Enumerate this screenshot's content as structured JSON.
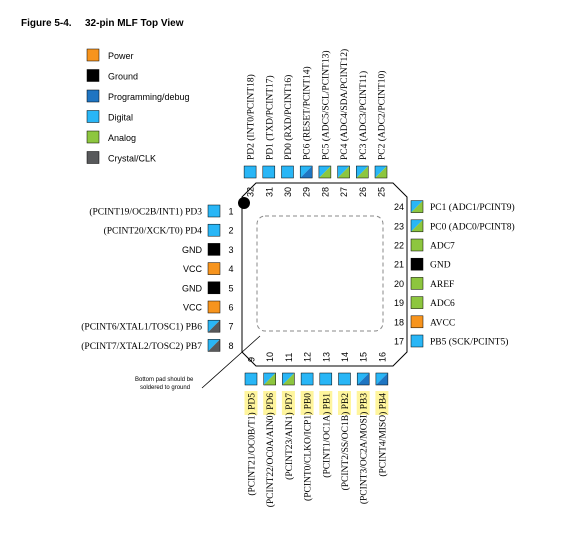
{
  "figure": {
    "title": "Figure 5-4.",
    "subtitle": "32-pin MLF Top View"
  },
  "colors": {
    "power": "#f7941d",
    "ground": "#000000",
    "programming": "#1f75c2",
    "digital": "#29b6f6",
    "analog": "#8dc63f",
    "crystal": "#58595b",
    "highlight": "#fff59d",
    "package_outline": "#000000"
  },
  "legend": [
    {
      "label": "Power",
      "type": "power"
    },
    {
      "label": "Ground",
      "type": "ground"
    },
    {
      "label": "Programming/debug",
      "type": "programming"
    },
    {
      "label": "Digital",
      "type": "digital"
    },
    {
      "label": "Analog",
      "type": "analog"
    },
    {
      "label": "Crystal/CLK",
      "type": "crystal"
    }
  ],
  "pins_left": [
    {
      "num": "1",
      "label": "(PCINT19/OC2B/INT1) PD3",
      "types": [
        "digital"
      ]
    },
    {
      "num": "2",
      "label": "(PCINT20/XCK/T0) PD4",
      "types": [
        "digital"
      ]
    },
    {
      "num": "3",
      "label": "GND",
      "types": [
        "ground"
      ]
    },
    {
      "num": "4",
      "label": "VCC",
      "types": [
        "power"
      ]
    },
    {
      "num": "5",
      "label": "GND",
      "types": [
        "ground"
      ]
    },
    {
      "num": "6",
      "label": "VCC",
      "types": [
        "power"
      ]
    },
    {
      "num": "7",
      "label": "(PCINT6/XTAL1/TOSC1) PB6",
      "types": [
        "digital",
        "crystal"
      ]
    },
    {
      "num": "8",
      "label": "(PCINT7/XTAL2/TOSC2) PB7",
      "types": [
        "digital",
        "crystal"
      ]
    }
  ],
  "pins_bottom": [
    {
      "num": "9",
      "label": "(PCINT21/OC0B/T1) PD5",
      "types": [
        "digital"
      ]
    },
    {
      "num": "10",
      "label": "(PCINT22/OC0A/AIN0) PD6",
      "types": [
        "digital",
        "analog"
      ]
    },
    {
      "num": "11",
      "label": "(PCINT23/AIN1) PD7",
      "types": [
        "digital",
        "analog"
      ]
    },
    {
      "num": "12",
      "label": "(PCINT0/CLKO/ICP1) PB0",
      "types": [
        "digital"
      ]
    },
    {
      "num": "13",
      "label": "(PCINT1/OC1A) PB1",
      "types": [
        "digital"
      ]
    },
    {
      "num": "14",
      "label": "(PCINT2/SS/OC1B) PB2",
      "types": [
        "digital"
      ]
    },
    {
      "num": "15",
      "label": "(PCINT3/OC2A/MOSI) PB3",
      "types": [
        "digital",
        "programming"
      ]
    },
    {
      "num": "16",
      "label": "(PCINT4/MISO) PB4",
      "types": [
        "digital",
        "programming"
      ]
    }
  ],
  "pins_right": [
    {
      "num": "17",
      "label": "PB5 (SCK/PCINT5)",
      "types": [
        "digital"
      ]
    },
    {
      "num": "18",
      "label": "AVCC",
      "types": [
        "power"
      ]
    },
    {
      "num": "19",
      "label": "ADC6",
      "types": [
        "analog"
      ]
    },
    {
      "num": "20",
      "label": "AREF",
      "types": [
        "analog"
      ]
    },
    {
      "num": "21",
      "label": "GND",
      "types": [
        "ground"
      ]
    },
    {
      "num": "22",
      "label": "ADC7",
      "types": [
        "analog"
      ]
    },
    {
      "num": "23",
      "label": "PC0 (ADC0/PCINT8)",
      "types": [
        "digital",
        "analog"
      ]
    },
    {
      "num": "24",
      "label": "PC1 (ADC1/PCINT9)",
      "types": [
        "digital",
        "analog"
      ]
    }
  ],
  "pins_top": [
    {
      "num": "25",
      "label": "PC2 (ADC2/PCINT10)",
      "types": [
        "digital",
        "analog"
      ]
    },
    {
      "num": "26",
      "label": "PC3 (ADC3/PCINT11)",
      "types": [
        "digital",
        "analog"
      ]
    },
    {
      "num": "27",
      "label": "PC4 (ADC4/SDA/PCINT12)",
      "types": [
        "digital",
        "analog"
      ]
    },
    {
      "num": "28",
      "label": "PC5 (ADC5/SCL/PCINT13)",
      "types": [
        "digital",
        "analog"
      ]
    },
    {
      "num": "29",
      "label": "PC6 (RESET/PCINT14)",
      "types": [
        "digital",
        "programming"
      ]
    },
    {
      "num": "30",
      "label": "PD0 (RXD/PCINT16)",
      "types": [
        "digital"
      ]
    },
    {
      "num": "31",
      "label": "PD1 (TXD/PCINT17)",
      "types": [
        "digital"
      ]
    },
    {
      "num": "32",
      "label": "PD2 (INT0/PCINT18)",
      "types": [
        "digital"
      ]
    }
  ],
  "note": {
    "line1": "Bottom pad should be",
    "line2": "soldered to ground"
  }
}
